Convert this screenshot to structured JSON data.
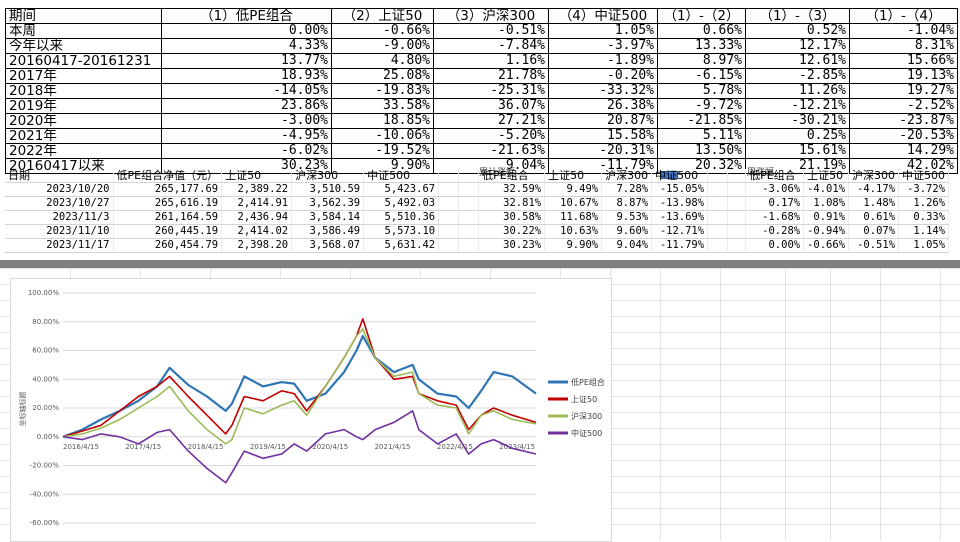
{
  "summary": {
    "headers": [
      "期间",
      "（1）低PE组合",
      "（2）上证50",
      "（3）沪深300",
      "（4）中证500",
      "（1）-（2）",
      "（1）-（3）",
      "（1）-（4）"
    ],
    "rows": [
      [
        "本周",
        "0.00%",
        "-0.66%",
        "-0.51%",
        "1.05%",
        "0.66%",
        "0.52%",
        "-1.04%"
      ],
      [
        "今年以来",
        "4.33%",
        "-9.00%",
        "-7.84%",
        "-3.97%",
        "13.33%",
        "12.17%",
        "8.31%"
      ],
      [
        "20160417-20161231",
        "13.77%",
        "4.80%",
        "1.16%",
        "-1.89%",
        "8.97%",
        "12.61%",
        "15.66%"
      ],
      [
        "2017年",
        "18.93%",
        "25.08%",
        "21.78%",
        "-0.20%",
        "-6.15%",
        "-2.85%",
        "19.13%"
      ],
      [
        "2018年",
        "-14.05%",
        "-19.83%",
        "-25.31%",
        "-33.32%",
        "5.78%",
        "11.26%",
        "19.27%"
      ],
      [
        "2019年",
        "23.86%",
        "33.58%",
        "36.07%",
        "26.38%",
        "-9.72%",
        "-12.21%",
        "-2.52%"
      ],
      [
        "2020年",
        "-3.00%",
        "18.85%",
        "27.21%",
        "20.87%",
        "-21.85%",
        "-30.21%",
        "-23.87%"
      ],
      [
        "2021年",
        "-4.95%",
        "-10.06%",
        "-5.20%",
        "15.58%",
        "5.11%",
        "0.25%",
        "-20.53%"
      ],
      [
        "2022年",
        "-6.02%",
        "-19.52%",
        "-21.63%",
        "-20.31%",
        "13.50%",
        "15.61%",
        "14.29%"
      ],
      [
        "20160417以来",
        "30.23%",
        "9.90%",
        "9.04%",
        "-11.79%",
        "20.32%",
        "21.19%",
        "42.02%"
      ]
    ]
  },
  "nav_table": {
    "section_cum": "累计涨幅",
    "section_week": "周涨幅",
    "headers": [
      "日期",
      "低PE组合净值（元）",
      "上证50",
      "沪深300",
      "中证500",
      "",
      "",
      "低PE组合",
      "上证50",
      "沪深300",
      "中证500",
      "",
      "",
      "低PE组合",
      "上证50",
      "沪深300",
      "中证500"
    ],
    "rows": [
      [
        "2023/10/20",
        "265,177.69",
        "2,389.22",
        "3,510.59",
        "5,423.67",
        "",
        "",
        "32.59%",
        "9.49%",
        "7.28%",
        "-15.05%",
        "",
        "",
        "-3.06%",
        "-4.01%",
        "-4.17%",
        "-3.72%"
      ],
      [
        "2023/10/27",
        "265,616.19",
        "2,414.91",
        "3,562.39",
        "5,492.03",
        "",
        "",
        "32.81%",
        "10.67%",
        "8.87%",
        "-13.98%",
        "",
        "",
        "0.17%",
        "1.08%",
        "1.48%",
        "1.26%"
      ],
      [
        "2023/11/3",
        "261,164.59",
        "2,436.94",
        "3,584.14",
        "5,510.36",
        "",
        "",
        "30.58%",
        "11.68%",
        "9.53%",
        "-13.69%",
        "",
        "",
        "-1.68%",
        "0.91%",
        "0.61%",
        "0.33%"
      ],
      [
        "2023/11/10",
        "260,445.19",
        "2,414.02",
        "3,586.49",
        "5,573.10",
        "",
        "",
        "30.22%",
        "10.63%",
        "9.60%",
        "-12.71%",
        "",
        "",
        "-0.28%",
        "-0.94%",
        "0.07%",
        "1.14%"
      ],
      [
        "2023/11/17",
        "260,454.79",
        "2,398.20",
        "3,568.07",
        "5,631.42",
        "",
        "",
        "30.23%",
        "9.90%",
        "9.04%",
        "-11.79%",
        "",
        "",
        "0.00%",
        "-0.66%",
        "-0.51%",
        "1.05%"
      ]
    ]
  },
  "chart_data": {
    "type": "line",
    "ylabel": "坐标轴标题",
    "ylim": [
      -0.6,
      1.0
    ],
    "yticks": [
      "100.00%",
      "80.00%",
      "60.00%",
      "40.00%",
      "20.00%",
      "0.00%",
      "-20.00%",
      "-40.00%",
      "-60.00%"
    ],
    "x_ticks": [
      "2016/4/15",
      "2017/4/15",
      "2018/4/15",
      "2019/4/15",
      "2020/4/15",
      "2021/4/15",
      "2022/4/15",
      "2023/4/15"
    ],
    "x_start": 2016.29,
    "x_end": 2023.88,
    "legend_position": "right",
    "series": [
      {
        "name": "低PE组合",
        "color": "#2e75b6",
        "x": [
          2016.29,
          2016.6,
          2016.9,
          2017.2,
          2017.5,
          2017.8,
          2018.0,
          2018.3,
          2018.6,
          2018.9,
          2019.0,
          2019.2,
          2019.5,
          2019.8,
          2020.0,
          2020.2,
          2020.5,
          2020.8,
          2021.0,
          2021.1,
          2021.3,
          2021.6,
          2021.9,
          2022.0,
          2022.3,
          2022.6,
          2022.8,
          2023.0,
          2023.2,
          2023.5,
          2023.88
        ],
        "y": [
          0.0,
          0.05,
          0.12,
          0.18,
          0.25,
          0.35,
          0.48,
          0.36,
          0.28,
          0.18,
          0.23,
          0.42,
          0.35,
          0.38,
          0.37,
          0.25,
          0.3,
          0.45,
          0.6,
          0.7,
          0.55,
          0.45,
          0.5,
          0.4,
          0.3,
          0.28,
          0.2,
          0.32,
          0.45,
          0.42,
          0.3
        ]
      },
      {
        "name": "上证50",
        "color": "#c00000",
        "x": [
          2016.29,
          2016.6,
          2016.9,
          2017.2,
          2017.5,
          2017.8,
          2018.0,
          2018.3,
          2018.6,
          2018.9,
          2019.0,
          2019.2,
          2019.5,
          2019.8,
          2020.0,
          2020.2,
          2020.5,
          2020.8,
          2021.0,
          2021.1,
          2021.3,
          2021.6,
          2021.9,
          2022.0,
          2022.3,
          2022.6,
          2022.8,
          2023.0,
          2023.2,
          2023.5,
          2023.88
        ],
        "y": [
          0.0,
          0.04,
          0.08,
          0.18,
          0.28,
          0.35,
          0.42,
          0.28,
          0.15,
          0.02,
          0.08,
          0.28,
          0.25,
          0.32,
          0.3,
          0.18,
          0.35,
          0.55,
          0.7,
          0.82,
          0.55,
          0.4,
          0.42,
          0.3,
          0.25,
          0.22,
          0.05,
          0.15,
          0.2,
          0.15,
          0.1
        ]
      },
      {
        "name": "沪深300",
        "color": "#9bbb59",
        "x": [
          2016.29,
          2016.6,
          2016.9,
          2017.2,
          2017.5,
          2017.8,
          2018.0,
          2018.3,
          2018.6,
          2018.9,
          2019.0,
          2019.2,
          2019.5,
          2019.8,
          2020.0,
          2020.2,
          2020.5,
          2020.8,
          2021.0,
          2021.1,
          2021.3,
          2021.6,
          2021.9,
          2022.0,
          2022.3,
          2022.6,
          2022.8,
          2023.0,
          2023.2,
          2023.5,
          2023.88
        ],
        "y": [
          0.0,
          0.02,
          0.06,
          0.12,
          0.2,
          0.28,
          0.35,
          0.18,
          0.05,
          -0.05,
          -0.02,
          0.2,
          0.16,
          0.22,
          0.25,
          0.15,
          0.35,
          0.55,
          0.7,
          0.75,
          0.55,
          0.42,
          0.45,
          0.3,
          0.22,
          0.2,
          0.02,
          0.15,
          0.18,
          0.12,
          0.09
        ]
      },
      {
        "name": "中证500",
        "color": "#7030a0",
        "x": [
          2016.29,
          2016.6,
          2016.9,
          2017.2,
          2017.5,
          2017.8,
          2018.0,
          2018.3,
          2018.6,
          2018.9,
          2019.0,
          2019.2,
          2019.5,
          2019.8,
          2020.0,
          2020.2,
          2020.5,
          2020.8,
          2021.0,
          2021.1,
          2021.3,
          2021.6,
          2021.9,
          2022.0,
          2022.3,
          2022.6,
          2022.8,
          2023.0,
          2023.2,
          2023.5,
          2023.88
        ],
        "y": [
          0.0,
          -0.02,
          0.02,
          0.0,
          -0.05,
          0.03,
          0.05,
          -0.1,
          -0.22,
          -0.32,
          -0.25,
          -0.1,
          -0.15,
          -0.12,
          -0.05,
          -0.1,
          0.02,
          0.05,
          0.0,
          -0.02,
          0.05,
          0.1,
          0.18,
          0.05,
          -0.05,
          0.02,
          -0.12,
          -0.05,
          -0.02,
          -0.08,
          -0.12
        ]
      }
    ]
  }
}
